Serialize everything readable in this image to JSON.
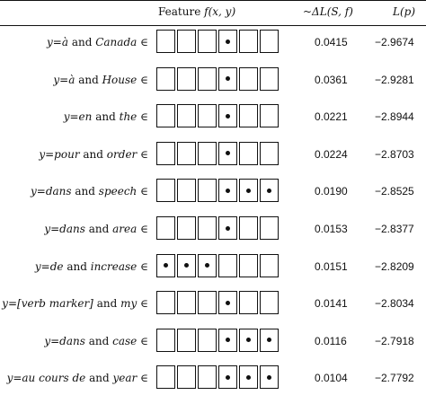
{
  "header": {
    "feature_label": "Feature",
    "feature_math": "f(x, y)",
    "delta_label": "~ΔL(S, f)",
    "lp_label": "L(p)"
  },
  "rows": [
    {
      "y": "y=à",
      "and": "and",
      "word": "Canada",
      "in": "∈",
      "dots": [
        false,
        false,
        false,
        true,
        false,
        false
      ],
      "delta": "0.0415",
      "lp": "−2.9674"
    },
    {
      "y": "y=à",
      "and": "and",
      "word": "House",
      "in": "∈",
      "dots": [
        false,
        false,
        false,
        true,
        false,
        false
      ],
      "delta": "0.0361",
      "lp": "−2.9281"
    },
    {
      "y": "y=en",
      "and": "and",
      "word": "the",
      "in": "∈",
      "dots": [
        false,
        false,
        false,
        true,
        false,
        false
      ],
      "delta": "0.0221",
      "lp": "−2.8944"
    },
    {
      "y": "y=pour",
      "and": "and",
      "word": "order",
      "in": "∈",
      "dots": [
        false,
        false,
        false,
        true,
        false,
        false
      ],
      "delta": "0.0224",
      "lp": "−2.8703"
    },
    {
      "y": "y=dans",
      "and": "and",
      "word": "speech",
      "in": "∈",
      "dots": [
        false,
        false,
        false,
        true,
        true,
        true
      ],
      "delta": "0.0190",
      "lp": "−2.8525"
    },
    {
      "y": "y=dans",
      "and": "and",
      "word": "area",
      "in": "∈",
      "dots": [
        false,
        false,
        false,
        true,
        false,
        false
      ],
      "delta": "0.0153",
      "lp": "−2.8377"
    },
    {
      "y": "y=de",
      "and": "and",
      "word": "increase",
      "in": "∈",
      "dots": [
        true,
        true,
        true,
        false,
        false,
        false
      ],
      "delta": "0.0151",
      "lp": "−2.8209"
    },
    {
      "y": "y=[verb marker]",
      "and": "and",
      "word": "my",
      "in": "∈",
      "dots": [
        false,
        false,
        false,
        true,
        false,
        false
      ],
      "delta": "0.0141",
      "lp": "−2.8034"
    },
    {
      "y": "y=dans",
      "and": "and",
      "word": "case",
      "in": "∈",
      "dots": [
        false,
        false,
        false,
        true,
        true,
        true
      ],
      "delta": "0.0116",
      "lp": "−2.7918"
    },
    {
      "y": "y=au cours de",
      "and": "and",
      "word": "year",
      "in": "∈",
      "dots": [
        false,
        false,
        false,
        true,
        true,
        true
      ],
      "delta": "0.0104",
      "lp": "−2.7792"
    }
  ]
}
